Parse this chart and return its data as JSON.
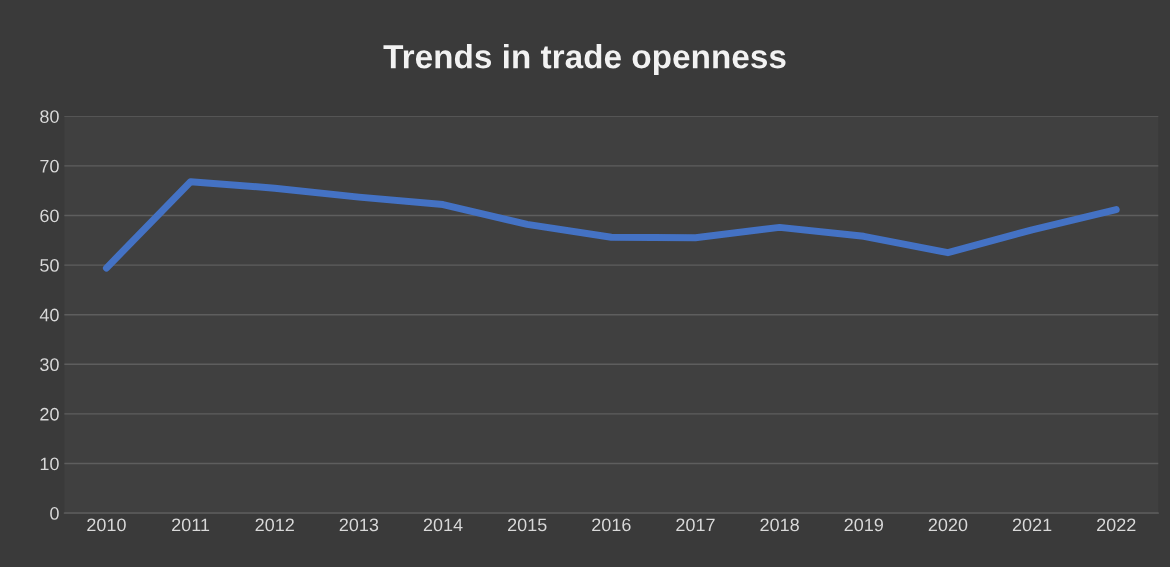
{
  "chart_data": {
    "type": "line",
    "title": "Trends in trade openness",
    "categories": [
      "2010",
      "2011",
      "2012",
      "2013",
      "2014",
      "2015",
      "2016",
      "2017",
      "2018",
      "2019",
      "2020",
      "2021",
      "2022"
    ],
    "series": [
      {
        "color": "#4472c4",
        "values": [
          49.4,
          66.8,
          65.5,
          63.7,
          62.2,
          58.2,
          55.6,
          55.5,
          57.6,
          55.8,
          52.5,
          57.1,
          61.2
        ]
      }
    ],
    "ylim": [
      0,
      80
    ],
    "yticks": [
      0,
      10,
      20,
      30,
      40,
      50,
      60,
      70,
      80
    ],
    "grid": "y",
    "marker": "none",
    "line_style": "solid",
    "legend": false
  }
}
